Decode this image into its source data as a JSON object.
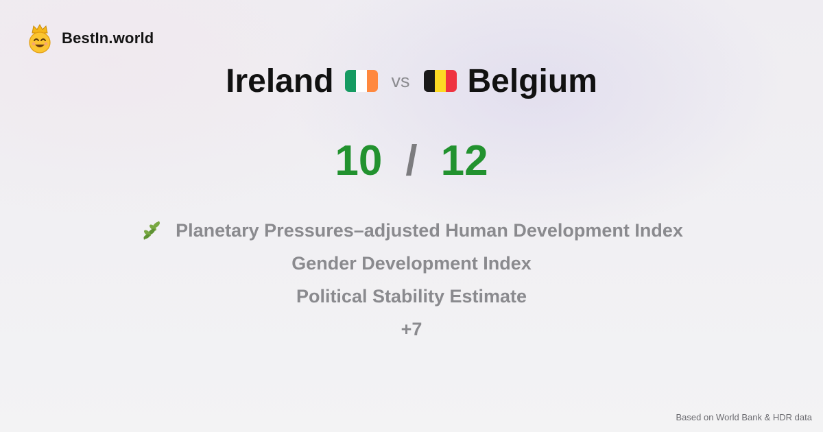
{
  "brand": {
    "name": "BestIn.world",
    "logo_icon": "crowned-smiley-icon"
  },
  "comparison": {
    "left": {
      "country": "Ireland",
      "flag_colors": [
        "#169b62",
        "#ffffff",
        "#ff883e"
      ]
    },
    "separator": "vs",
    "right": {
      "country": "Belgium",
      "flag_colors": [
        "#1a1a1a",
        "#fdda24",
        "#ef3340"
      ]
    }
  },
  "scores": {
    "left": "10",
    "separator": "/",
    "right": "12"
  },
  "metrics": [
    {
      "icon": "herb-leaf-icon",
      "label": "Planetary Pressures–adjusted Human Development Index"
    },
    {
      "label": "Gender Development Index"
    },
    {
      "label": "Political Stability Estimate"
    },
    {
      "label": "+7"
    }
  ],
  "footer": {
    "source": "Based on World Bank & HDR data"
  },
  "colors": {
    "score": "#22922f",
    "metric_text": "#8a8a8e"
  }
}
